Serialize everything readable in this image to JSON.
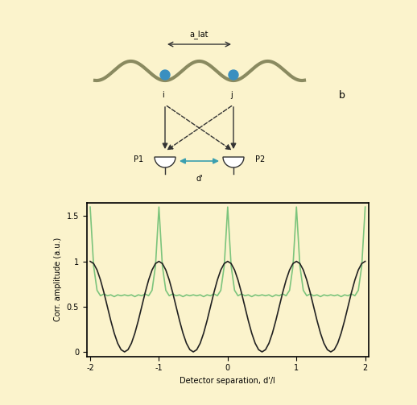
{
  "chart_data": {
    "type": "line",
    "x_label": "Detector separation, d'/l",
    "y_label": "Corr. amplitude (a.u.)",
    "x": [
      -2,
      -1.95,
      -1.9,
      -1.85,
      -1.8,
      -1.75,
      -1.7,
      -1.65,
      -1.6,
      -1.55,
      -1.5,
      -1.45,
      -1.4,
      -1.35,
      -1.3,
      -1.25,
      -1.2,
      -1.15,
      -1.1,
      -1.05,
      -1,
      -0.95,
      -0.9,
      -0.85,
      -0.8,
      -0.75,
      -0.7,
      -0.65,
      -0.6,
      -0.55,
      -0.5,
      -0.45,
      -0.4,
      -0.35,
      -0.3,
      -0.25,
      -0.2,
      -0.15,
      -0.1,
      -0.05,
      0,
      0.05,
      0.1,
      0.15,
      0.2,
      0.25,
      0.3,
      0.35,
      0.4,
      0.45,
      0.5,
      0.55,
      0.6,
      0.65,
      0.7,
      0.75,
      0.8,
      0.85,
      0.9,
      0.95,
      1,
      1.05,
      1.1,
      1.15,
      1.2,
      1.25,
      1.3,
      1.35,
      1.4,
      1.45,
      1.5,
      1.55,
      1.6,
      1.65,
      1.7,
      1.75,
      1.8,
      1.85,
      1.9,
      1.95,
      2
    ],
    "series": [
      {
        "color": "#7cc47c",
        "values": [
          1.6,
          0.95,
          0.68,
          0.62,
          0.64,
          0.62,
          0.63,
          0.61,
          0.63,
          0.62,
          0.63,
          0.62,
          0.63,
          0.61,
          0.63,
          0.62,
          0.64,
          0.62,
          0.68,
          0.95,
          1.6,
          0.95,
          0.68,
          0.62,
          0.64,
          0.62,
          0.63,
          0.61,
          0.63,
          0.62,
          0.63,
          0.62,
          0.63,
          0.61,
          0.63,
          0.62,
          0.64,
          0.62,
          0.68,
          0.95,
          1.6,
          0.95,
          0.68,
          0.62,
          0.64,
          0.62,
          0.63,
          0.61,
          0.63,
          0.62,
          0.63,
          0.62,
          0.63,
          0.61,
          0.63,
          0.62,
          0.64,
          0.62,
          0.68,
          0.95,
          1.6,
          0.95,
          0.68,
          0.62,
          0.64,
          0.62,
          0.63,
          0.61,
          0.63,
          0.62,
          0.63,
          0.62,
          0.63,
          0.61,
          0.63,
          0.62,
          0.64,
          0.62,
          0.68,
          0.95,
          1.6
        ]
      },
      {
        "color": "#222222",
        "values": [
          1,
          0.976,
          0.905,
          0.794,
          0.655,
          0.5,
          0.345,
          0.206,
          0.095,
          0.024,
          0,
          0.024,
          0.095,
          0.206,
          0.345,
          0.5,
          0.655,
          0.794,
          0.905,
          0.976,
          1,
          0.976,
          0.905,
          0.794,
          0.655,
          0.5,
          0.345,
          0.206,
          0.095,
          0.024,
          0,
          0.024,
          0.095,
          0.206,
          0.345,
          0.5,
          0.655,
          0.794,
          0.905,
          0.976,
          1,
          0.976,
          0.905,
          0.794,
          0.655,
          0.5,
          0.345,
          0.206,
          0.095,
          0.024,
          0,
          0.024,
          0.095,
          0.206,
          0.345,
          0.5,
          0.655,
          0.794,
          0.905,
          0.976,
          1,
          0.976,
          0.905,
          0.794,
          0.655,
          0.5,
          0.345,
          0.206,
          0.095,
          0.024,
          0,
          0.024,
          0.095,
          0.206,
          0.345,
          0.5,
          0.655,
          0.794,
          0.905,
          0.976,
          1
        ]
      }
    ],
    "xlim": [
      -2.05,
      2.05
    ],
    "xticks": [
      -2,
      -1,
      0,
      1,
      2
    ],
    "ylim": [
      -0.05,
      1.65
    ],
    "yticks": [
      0,
      0.5,
      1,
      1.5
    ]
  },
  "diagram": {
    "lattice_spacing": "a_lat",
    "site_left": "i",
    "site_right": "j",
    "detector_left": "P1",
    "detector_right": "P2",
    "detector_separation": "d'",
    "panel": "b"
  }
}
